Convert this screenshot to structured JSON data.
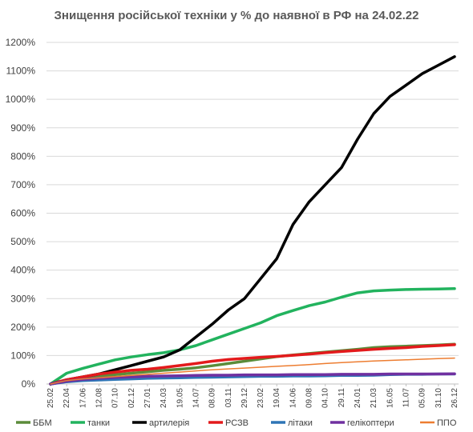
{
  "chart_data": {
    "type": "line",
    "title": "Знищення російської техніки у % до наявної в РФ на 24.02.22",
    "xlabel": "",
    "ylabel": "",
    "ylim": [
      0,
      1200
    ],
    "ytick_labels": [
      "0%",
      "100%",
      "200%",
      "300%",
      "400%",
      "500%",
      "600%",
      "700%",
      "800%",
      "900%",
      "1000%",
      "1100%",
      "1200%"
    ],
    "x_tick_labels": [
      "25.02",
      "22.04",
      "17.06",
      "12.08",
      "07.10",
      "02.12",
      "27.01",
      "24.03",
      "19.05",
      "14.07",
      "08.09",
      "03.11",
      "29.12",
      "23.02",
      "19.04",
      "14.06",
      "09.08",
      "04.10",
      "29.11",
      "24.01",
      "21.03",
      "16.05",
      "11.07",
      "05.09",
      "31.10",
      "26.12"
    ],
    "grid": true,
    "legend_position": "bottom",
    "series": [
      {
        "name": "ББМ",
        "color": "#5b8c3a",
        "width": 3.5,
        "values": [
          0,
          10,
          20,
          27,
          33,
          38,
          43,
          48,
          52,
          57,
          64,
          72,
          80,
          88,
          96,
          102,
          107,
          112,
          117,
          122,
          128,
          131,
          133,
          135,
          137,
          140
        ]
      },
      {
        "name": "танки",
        "color": "#22b35e",
        "width": 3.5,
        "values": [
          0,
          38,
          55,
          70,
          85,
          95,
          103,
          110,
          120,
          135,
          155,
          175,
          195,
          215,
          240,
          258,
          275,
          288,
          305,
          320,
          327,
          330,
          332,
          333,
          334,
          335
        ]
      },
      {
        "name": "артилерія",
        "color": "#000000",
        "width": 3.5,
        "values": [
          0,
          15,
          25,
          35,
          50,
          65,
          80,
          95,
          120,
          165,
          210,
          260,
          300,
          370,
          440,
          560,
          640,
          700,
          760,
          860,
          950,
          1010,
          1050,
          1090,
          1120,
          1150
        ]
      },
      {
        "name": "РСЗВ",
        "color": "#e31a1c",
        "width": 3.5,
        "values": [
          0,
          15,
          25,
          35,
          42,
          48,
          52,
          58,
          65,
          72,
          80,
          86,
          90,
          94,
          97,
          101,
          105,
          110,
          114,
          118,
          122,
          125,
          128,
          132,
          135,
          138
        ]
      },
      {
        "name": "літаки",
        "color": "#2e75b6",
        "width": 3.5,
        "values": [
          0,
          8,
          12,
          14,
          16,
          18,
          20,
          21,
          22,
          23,
          24,
          25,
          26,
          27,
          27,
          28,
          28,
          29,
          30,
          30,
          31,
          33,
          34,
          34,
          35,
          35
        ]
      },
      {
        "name": "гелікоптери",
        "color": "#7030a0",
        "width": 3.5,
        "values": [
          0,
          10,
          16,
          20,
          23,
          25,
          27,
          28,
          29,
          30,
          31,
          31,
          32,
          32,
          32,
          33,
          33,
          33,
          34,
          34,
          34,
          35,
          35,
          35,
          35,
          36
        ]
      },
      {
        "name": "ППО",
        "color": "#ed7d31",
        "width": 1.5,
        "values": [
          0,
          12,
          18,
          22,
          26,
          30,
          34,
          38,
          42,
          46,
          50,
          53,
          56,
          59,
          62,
          65,
          68,
          72,
          75,
          78,
          81,
          83,
          85,
          87,
          89,
          91
        ]
      }
    ]
  }
}
